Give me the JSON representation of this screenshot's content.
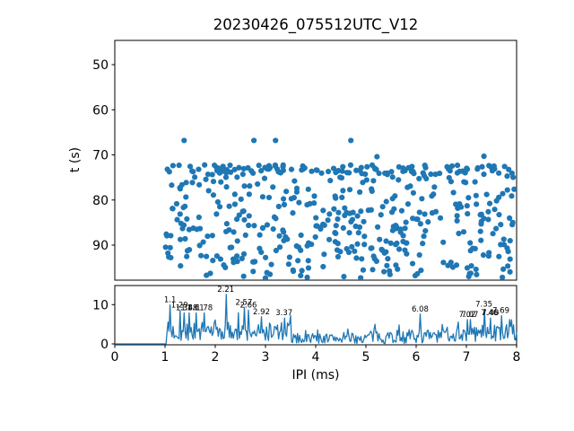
{
  "figure": {
    "title": "20230426_075512UTC_V12",
    "background": "#ffffff",
    "accent_color": "#1f77b4",
    "text_color": "#000000"
  },
  "chart_data": [
    {
      "type": "scatter",
      "title": "20230426_075512UTC_V12",
      "xlabel": "",
      "ylabel": "t (s)",
      "xlim": [
        0,
        8
      ],
      "ylim": [
        44.6,
        97.8
      ],
      "y_axis_inverted": true,
      "yticks": [
        50,
        60,
        70,
        80,
        90
      ],
      "xtick_labels_visible": false,
      "grid": false,
      "legend": "none",
      "marker_color": "#1f77b4",
      "marker_size_px": 6,
      "points_approximate": true,
      "outlier_points": [
        [
          1.38,
          66.8
        ],
        [
          2.77,
          66.8
        ],
        [
          3.2,
          66.8
        ],
        [
          4.7,
          66.8
        ],
        [
          5.22,
          70.4
        ],
        [
          7.35,
          70.3
        ]
      ],
      "band_generation": {
        "seed": 42,
        "top_chain": {
          "n": 115,
          "x": [
            1.02,
            7.95
          ],
          "t": [
            72.2,
            74.3
          ]
        },
        "cloud": {
          "n": 330,
          "x": [
            1.0,
            7.98
          ],
          "t": [
            74.3,
            93.5
          ]
        },
        "sparse_bottom": {
          "n": 55,
          "x": [
            1.0,
            7.95
          ],
          "t": [
            93.5,
            97.3
          ]
        }
      }
    },
    {
      "type": "line",
      "xlabel": "IPI (ms)",
      "ylabel": "",
      "xlim": [
        0,
        8
      ],
      "ylim": [
        0,
        14.9
      ],
      "yticks": [
        0,
        10
      ],
      "xticks": [
        0,
        1,
        2,
        3,
        4,
        5,
        6,
        7,
        8
      ],
      "grid": false,
      "legend": "none",
      "line_color": "#1f77b4",
      "bin_width": 0.02,
      "zero_until_x": 1.04,
      "seed": 7,
      "segments": [
        {
          "x": [
            1.04,
            3.5
          ],
          "base": 0.5,
          "amp": 5.2
        },
        {
          "x": [
            3.5,
            5.0
          ],
          "base": 0.1,
          "amp": 2.6
        },
        {
          "x": [
            5.0,
            6.5
          ],
          "base": 0.1,
          "amp": 3.6
        },
        {
          "x": [
            6.5,
            8.0
          ],
          "base": 0.4,
          "amp": 4.6
        }
      ],
      "peaks": [
        {
          "label": "1.1",
          "x": 1.1,
          "y": 9.9
        },
        {
          "label": "1.29",
          "x": 1.29,
          "y": 8.6
        },
        {
          "label": "1.38",
          "x": 1.38,
          "y": 7.9
        },
        {
          "label": "1.48",
          "x": 1.48,
          "y": 7.9
        },
        {
          "label": "1.61",
          "x": 1.61,
          "y": 7.9
        },
        {
          "label": "1.78",
          "x": 1.78,
          "y": 7.9
        },
        {
          "label": "2.21",
          "x": 2.21,
          "y": 12.6
        },
        {
          "label": "2.57",
          "x": 2.57,
          "y": 9.3
        },
        {
          "label": "2.66",
          "x": 2.66,
          "y": 8.6
        },
        {
          "label": "2.92",
          "x": 2.92,
          "y": 6.9
        },
        {
          "label": "3.37",
          "x": 3.37,
          "y": 6.6
        },
        {
          "label": "6.08",
          "x": 6.08,
          "y": 7.6
        },
        {
          "label": "7.02",
          "x": 7.02,
          "y": 6.2
        },
        {
          "label": "7.07",
          "x": 7.07,
          "y": 6.2
        },
        {
          "label": "7.35",
          "x": 7.35,
          "y": 8.8
        },
        {
          "label": "7.46",
          "x": 7.46,
          "y": 6.6
        },
        {
          "label": "7.48",
          "x": 7.48,
          "y": 6.6
        },
        {
          "label": "7.69",
          "x": 7.69,
          "y": 7.2
        }
      ]
    }
  ]
}
